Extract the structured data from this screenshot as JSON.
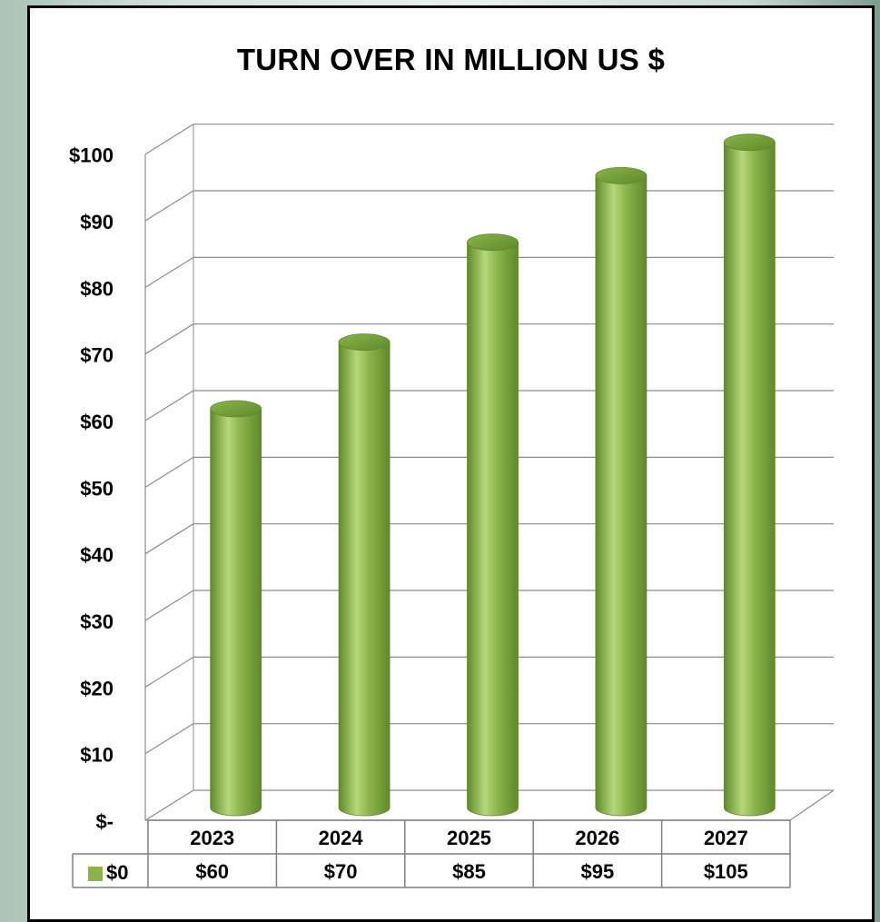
{
  "chart_data": {
    "type": "bar",
    "style": "3d-cylinder",
    "title": "TURN OVER IN MILLION US $",
    "categories": [
      "2023",
      "2024",
      "2025",
      "2026",
      "2027"
    ],
    "series": [
      {
        "name": "$0",
        "values": [
          60,
          70,
          85,
          95,
          105
        ],
        "labels": [
          "$60",
          "$70",
          "$85",
          "$95",
          "$105"
        ]
      }
    ],
    "y_ticks": [
      "$-",
      "$10",
      "$20",
      "$30",
      "$40",
      "$50",
      "$60",
      "$70",
      "$80",
      "$90",
      "$100"
    ],
    "ylim": [
      0,
      100
    ],
    "grid": true,
    "data_table": true,
    "legend": "data-table-row",
    "colors": {
      "bar": "#8ab34a",
      "bar_light": "#b7d87a",
      "bar_dark": "#5f8a2a",
      "grid": "#8c8c8c",
      "table_border": "#7f7f7f"
    }
  }
}
